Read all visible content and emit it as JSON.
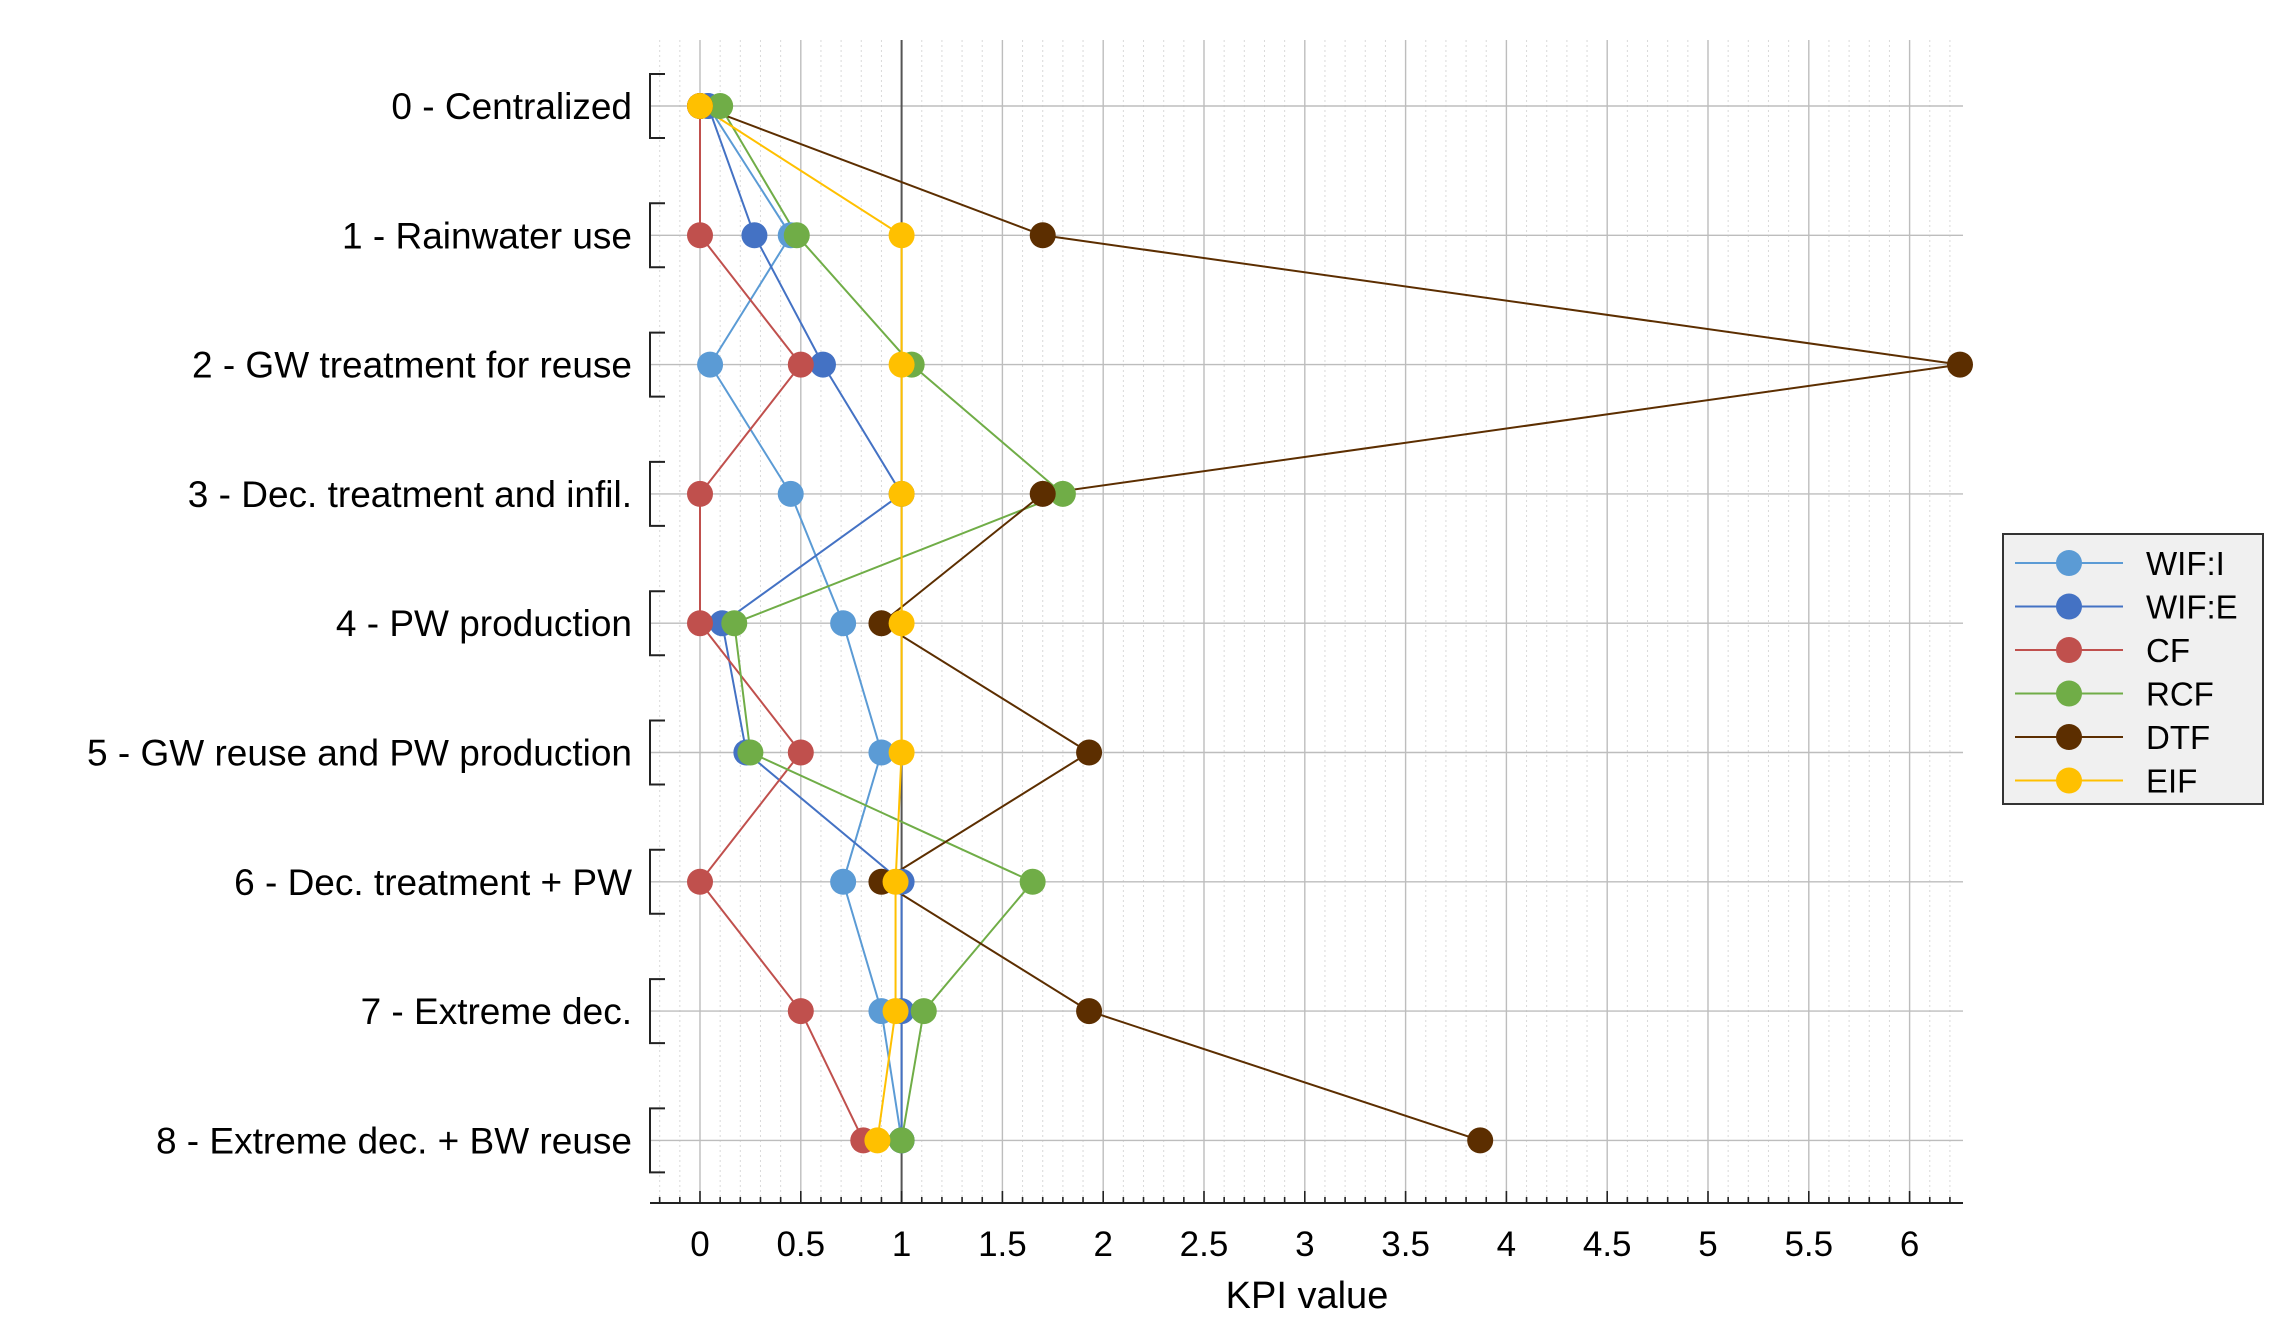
{
  "chart_data": {
    "type": "line",
    "title": "",
    "xlabel": "KPI value",
    "ylabel": "",
    "xlim": [
      -0.25,
      6.25
    ],
    "xticks": [
      0,
      0.5,
      1,
      1.5,
      2,
      2.5,
      3,
      3.5,
      4,
      4.5,
      5,
      5.5,
      6
    ],
    "xtick_labels": [
      "0",
      "0.5",
      "1",
      "1.5",
      "2",
      "2.5",
      "3",
      "3.5",
      "4",
      "4.5",
      "5",
      "5.5",
      "6"
    ],
    "reference_line_x": 1,
    "grid": true,
    "legend_position": "right",
    "categories": [
      "0 - Centralized",
      "1 - Rainwater use",
      "2 - GW treatment for reuse",
      "3 - Dec. treatment and infil.",
      "4 - PW production",
      "5 - GW reuse and PW production",
      "6 - Dec. treatment + PW",
      "7 - Extreme dec.",
      "8 - Extreme dec. + BW reuse"
    ],
    "series": [
      {
        "name": "WIF:I",
        "color": "#5b9bd5",
        "values": [
          0.04,
          0.45,
          0.05,
          0.45,
          0.71,
          0.9,
          0.71,
          0.9,
          1.0
        ]
      },
      {
        "name": "WIF:E",
        "color": "#4472c4",
        "values": [
          0.04,
          0.27,
          0.61,
          1.0,
          0.11,
          0.23,
          1.0,
          1.0,
          1.0
        ]
      },
      {
        "name": "CF",
        "color": "#c0504d",
        "values": [
          0.0,
          0.0,
          0.5,
          0.0,
          0.0,
          0.5,
          0.0,
          0.5,
          0.81
        ]
      },
      {
        "name": "RCF",
        "color": "#70ad47",
        "values": [
          0.1,
          0.48,
          1.05,
          1.8,
          0.17,
          0.25,
          1.65,
          1.11,
          1.0
        ]
      },
      {
        "name": "DTF",
        "color": "#5c2e00",
        "values": [
          0.0,
          1.7,
          6.25,
          1.7,
          0.9,
          1.93,
          0.9,
          1.93,
          3.87
        ]
      },
      {
        "name": "EIF",
        "color": "#ffc000",
        "values": [
          0.0,
          1.0,
          1.0,
          1.0,
          1.0,
          1.0,
          0.97,
          0.97,
          0.88
        ]
      }
    ]
  }
}
